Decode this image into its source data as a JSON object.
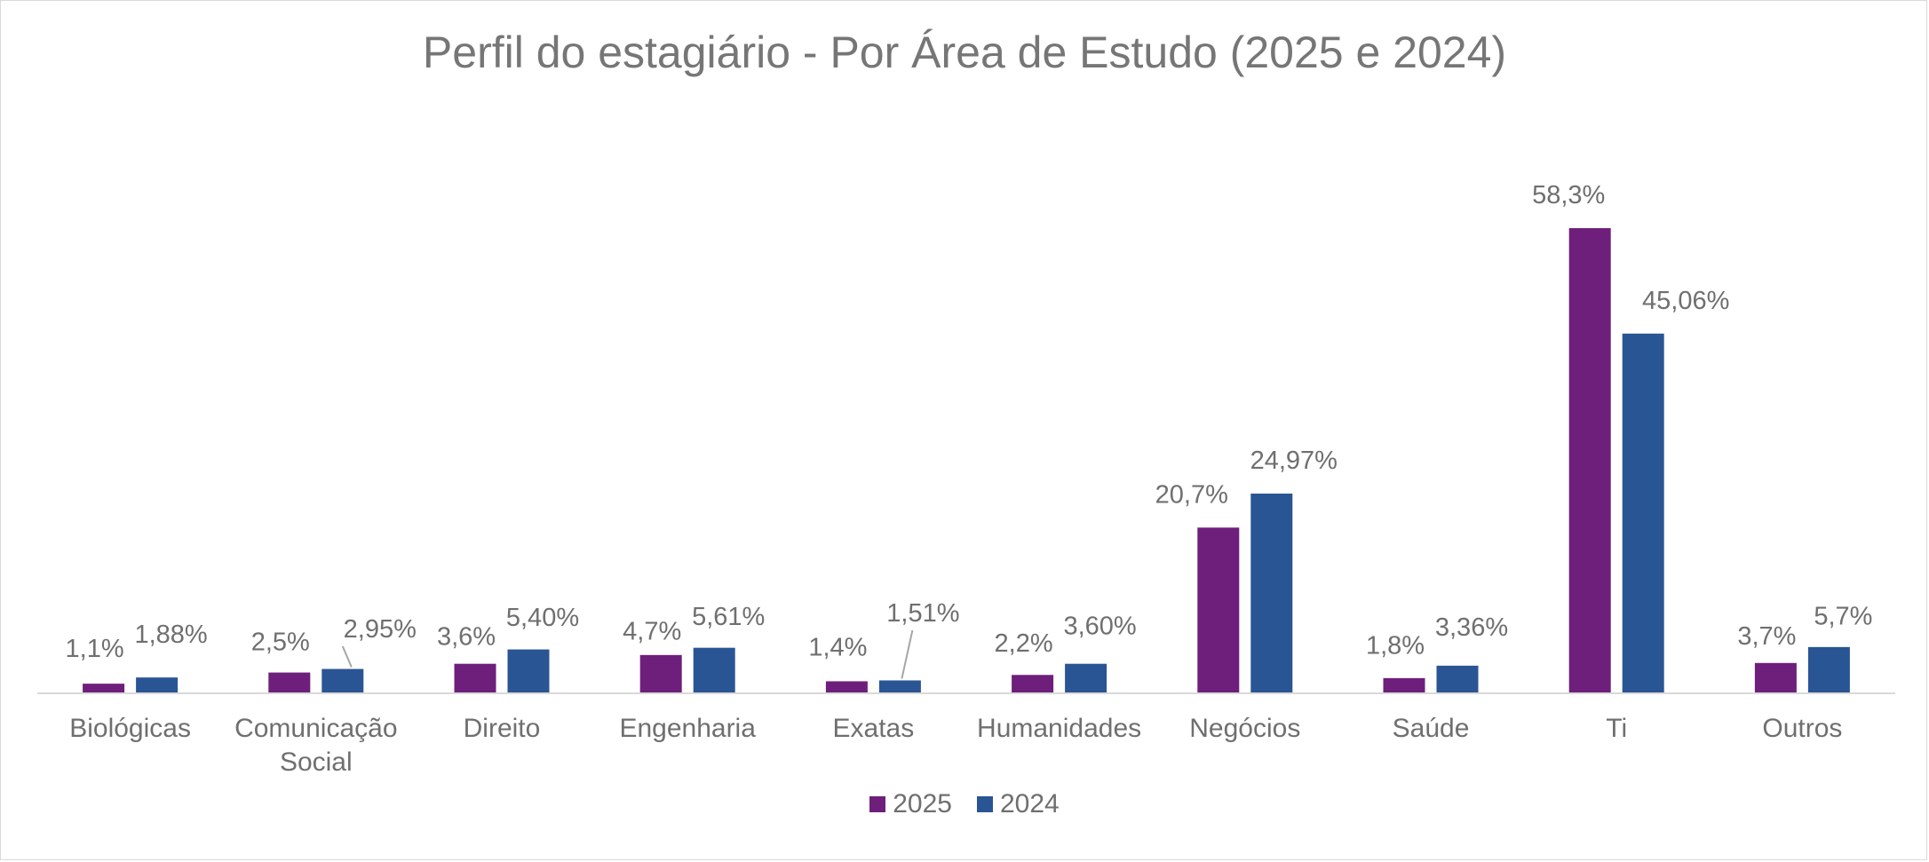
{
  "chart_data": {
    "type": "bar",
    "title": "Perfil do estagiário - Por Área de Estudo (2025 e 2024)",
    "categories": [
      [
        "Biológicas"
      ],
      [
        "Comunicação",
        "Social"
      ],
      [
        "Direito"
      ],
      [
        "Engenharia"
      ],
      [
        "Exatas"
      ],
      [
        "Humanidades"
      ],
      [
        "Negócios"
      ],
      [
        "Saúde"
      ],
      [
        "Ti"
      ],
      [
        "Outros"
      ]
    ],
    "series": [
      {
        "name": "2025",
        "color": "#6e1f7b",
        "values": [
          1.1,
          2.5,
          3.6,
          4.7,
          1.4,
          2.2,
          20.7,
          1.8,
          58.3,
          3.7
        ],
        "labels": [
          "1,1%",
          "2,5%",
          "3,6%",
          "4,7%",
          "1,4%",
          "2,2%",
          "20,7%",
          "1,8%",
          "58,3%",
          "3,7%"
        ]
      },
      {
        "name": "2024",
        "color": "#2a5595",
        "values": [
          1.88,
          2.95,
          5.4,
          5.61,
          1.51,
          3.6,
          24.97,
          3.36,
          45.06,
          5.7
        ],
        "labels": [
          "1,88%",
          "2,95%",
          "5,40%",
          "5,61%",
          "1,51%",
          "3,60%",
          "24,97%",
          "3,36%",
          "45,06%",
          "5,7%"
        ]
      }
    ],
    "xlabel": "",
    "ylabel": "",
    "ylim": [
      0,
      60
    ],
    "grid": false,
    "legend": "bottom-center"
  }
}
